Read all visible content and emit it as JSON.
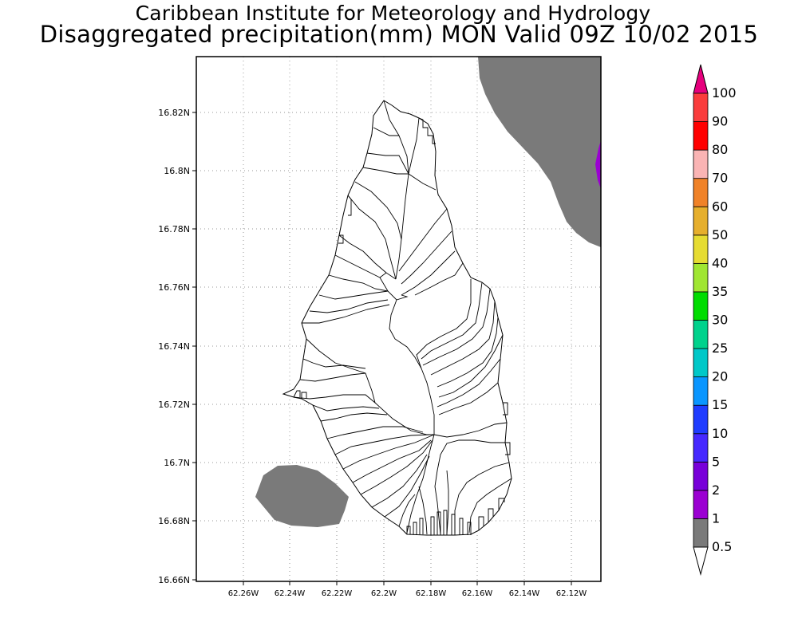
{
  "header": {
    "institute": "Caribbean Institute for Meteorology and Hydrology",
    "product": "Disaggregated precipitation(mm) MON Valid 09Z 10/02 2015"
  },
  "map": {
    "y_axis_labels": [
      "16.82N",
      "16.8N",
      "16.78N",
      "16.76N",
      "16.74N",
      "16.72N",
      "16.7N",
      "16.68N",
      "16.66N"
    ],
    "x_axis_labels": [
      "62.26W",
      "62.24W",
      "62.22W",
      "62.2W",
      "62.18W",
      "62.16W",
      "62.14W",
      "62.12W"
    ],
    "grid": true,
    "shaded_areas": [
      {
        "name": "northeast-sea-area",
        "category": "0.5-1",
        "color": "#7a7a7a"
      },
      {
        "name": "southwest-sea-area",
        "category": "0.5-1",
        "color": "#7a7a7a"
      },
      {
        "name": "east-edge-patch",
        "category": "1-2",
        "color": "#9b00d2"
      }
    ]
  },
  "colorbar": {
    "levels": [
      "0.5",
      "1",
      "2",
      "5",
      "10",
      "15",
      "20",
      "25",
      "30",
      "35",
      "40",
      "50",
      "60",
      "70",
      "80",
      "90",
      "100"
    ],
    "colors": [
      "#ffffff",
      "#7a7a7a",
      "#9b00d2",
      "#7800d9",
      "#4628ff",
      "#1f3cff",
      "#0a96ff",
      "#00c8c8",
      "#00d28c",
      "#00dc00",
      "#a0e632",
      "#e6dc32",
      "#e6af2d",
      "#f08228",
      "#fab4b4",
      "#ff0000",
      "#fa3c3c",
      "#e6007d"
    ]
  }
}
